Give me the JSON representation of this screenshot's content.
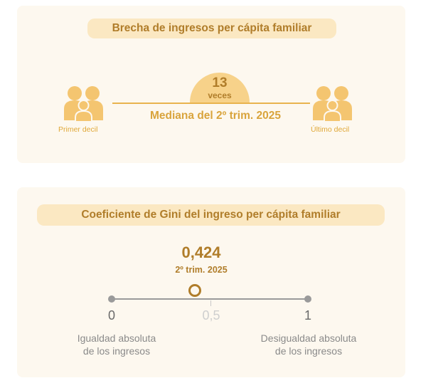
{
  "income_gap": {
    "title": "Brecha de ingresos per cápita familiar",
    "times_value": "13",
    "times_unit": "veces",
    "median_label": "Mediana del 2º trim. 2025",
    "left_label": "Primer decil",
    "right_label": "Último decil"
  },
  "gini": {
    "title": "Coeficiente de Gini del ingreso per cápita familiar",
    "value": "0,424",
    "value_numeric": 0.424,
    "period": "2º trim. 2025",
    "scale": {
      "min_label": "0",
      "mid_label": "0,5",
      "max_label": "1",
      "min_desc_line1": "Igualdad absoluta",
      "min_desc_line2": "de los ingresos",
      "max_desc_line1": "Desigualdad absoluta",
      "max_desc_line2": "de los ingresos"
    }
  },
  "colors": {
    "card_bg": "#fdf8ef",
    "pill_bg": "#fbe8c2",
    "accent_dark": "#b07d2a",
    "accent": "#e8b34e",
    "icon": "#f4c570",
    "axis": "#9a9a9a"
  }
}
